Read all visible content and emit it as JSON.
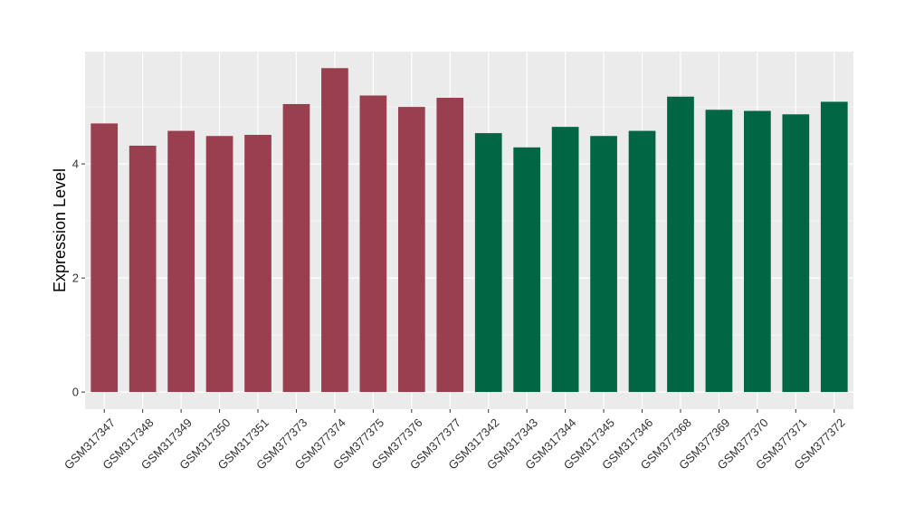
{
  "chart_data": {
    "type": "bar",
    "title": "",
    "xlabel": "",
    "ylabel": "Expression Level",
    "ylim": [
      -0.3,
      5.97
    ],
    "yticks": [
      0,
      2,
      4
    ],
    "grid": true,
    "legend": "none",
    "categories": [
      "GSM317347",
      "GSM317348",
      "GSM317349",
      "GSM317350",
      "GSM317351",
      "GSM377373",
      "GSM377374",
      "GSM377375",
      "GSM377376",
      "GSM377377",
      "GSM317342",
      "GSM317343",
      "GSM317344",
      "GSM317345",
      "GSM317346",
      "GSM377368",
      "GSM377369",
      "GSM377370",
      "GSM377371",
      "GSM377372"
    ],
    "values": [
      4.71,
      4.32,
      4.58,
      4.49,
      4.51,
      5.05,
      5.68,
      5.2,
      5.0,
      5.16,
      4.54,
      4.29,
      4.65,
      4.49,
      4.58,
      5.18,
      4.95,
      4.93,
      4.87,
      5.09
    ],
    "group_colors": [
      "#9a3f4f",
      "#9a3f4f",
      "#9a3f4f",
      "#9a3f4f",
      "#9a3f4f",
      "#9a3f4f",
      "#9a3f4f",
      "#9a3f4f",
      "#9a3f4f",
      "#9a3f4f",
      "#006644",
      "#006644",
      "#006644",
      "#006644",
      "#006644",
      "#006644",
      "#006644",
      "#006644",
      "#006644",
      "#006644"
    ],
    "panel_background": "#ebebeb",
    "grid_color": "#ffffff"
  }
}
